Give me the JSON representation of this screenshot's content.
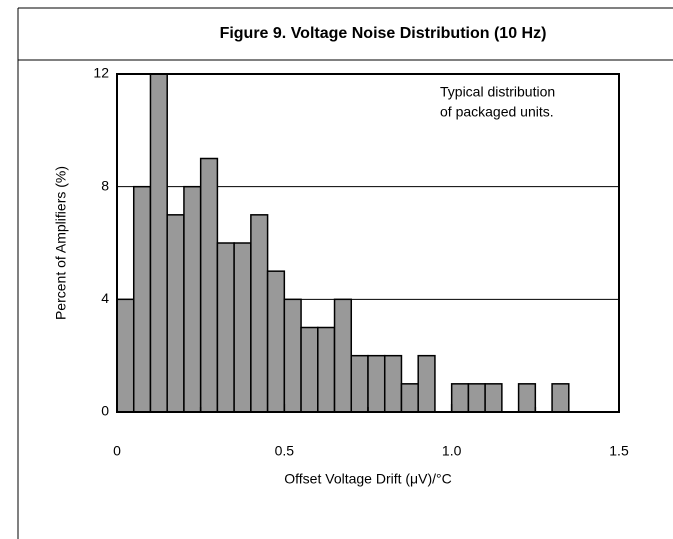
{
  "chart_data": {
    "type": "histogram",
    "title": "Figure 9. Voltage Noise Distribution (10 Hz)",
    "xlabel": "Offset Voltage Drift (μV)/°C",
    "ylabel": "Percent of Amplifiers (%)",
    "annotation": [
      "Typical distribution",
      "of packaged units."
    ],
    "bins": [
      0,
      0.05,
      0.1,
      0.15,
      0.2,
      0.25,
      0.3,
      0.35,
      0.4,
      0.45,
      0.5,
      0.55,
      0.6,
      0.65,
      0.7,
      0.75,
      0.8,
      0.85,
      0.9,
      0.95,
      1.0,
      1.05,
      1.1,
      1.15,
      1.2,
      1.25,
      1.3,
      1.35,
      1.4,
      1.45,
      1.5
    ],
    "values": [
      4,
      8,
      12,
      7,
      8,
      9,
      6,
      6,
      7,
      5,
      4,
      3,
      3,
      4,
      2,
      2,
      2,
      1,
      2,
      0,
      1,
      1,
      1,
      0,
      1,
      0,
      1,
      0,
      0,
      0
    ],
    "color": "#999999",
    "xlim": [
      0,
      1.5
    ],
    "xticks": [
      0,
      0.5,
      {
        "value": 1,
        "label": "1.0"
      },
      1.5
    ],
    "xminorticks": [
      0.25,
      0.75,
      1.25
    ],
    "ylim": [
      0,
      12
    ],
    "yticks": [
      0,
      4,
      8,
      12
    ],
    "grid": true
  }
}
